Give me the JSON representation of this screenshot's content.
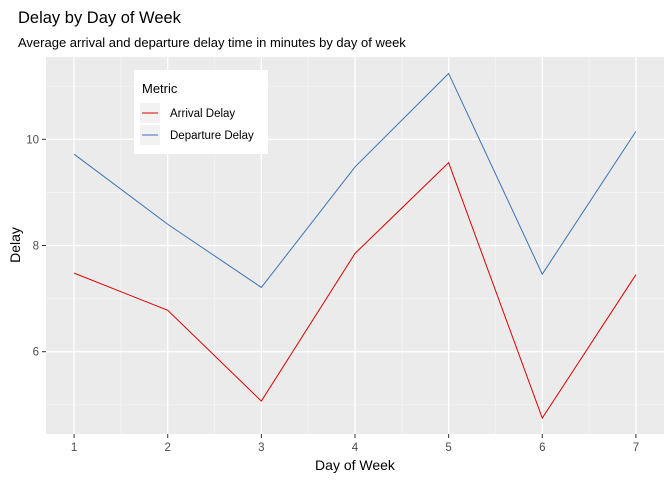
{
  "chart_data": {
    "type": "line",
    "title": "Delay by Day of Week",
    "subtitle": "Average arrival and departure delay time in minutes by day of week",
    "xlabel": "Day of Week",
    "ylabel": "Delay",
    "x": [
      1,
      2,
      3,
      4,
      5,
      6,
      7
    ],
    "xticks": [
      "1",
      "2",
      "3",
      "4",
      "5",
      "6",
      "7"
    ],
    "yticks": [
      "6",
      "8",
      "10"
    ],
    "xlim": [
      0.7,
      7.3
    ],
    "ylim": [
      4.45,
      11.55
    ],
    "grid": true,
    "legend": {
      "title": "Metric",
      "position": "top-left"
    },
    "series": [
      {
        "name": "Arrival Delay",
        "color": "#e00000",
        "values": [
          7.48,
          6.78,
          5.07,
          7.85,
          9.56,
          4.75,
          7.45
        ]
      },
      {
        "name": "Departure Delay",
        "color": "#3a74b8",
        "values": [
          9.72,
          8.4,
          7.21,
          9.48,
          11.24,
          7.46,
          10.15
        ]
      }
    ]
  }
}
